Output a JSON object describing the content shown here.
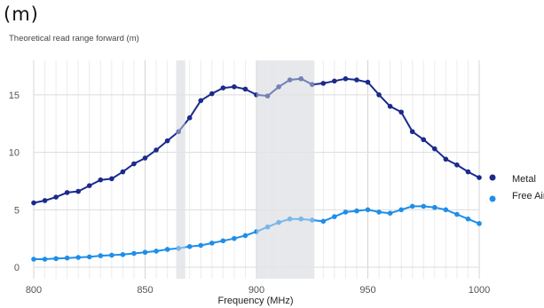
{
  "panel_label": "(m)",
  "chart_data": {
    "type": "line",
    "title": "Theoretical read range forward (m)",
    "xlabel": "Frequency (MHz)",
    "ylabel": "",
    "xlim": [
      800,
      1000
    ],
    "ylim": [
      -1,
      18
    ],
    "xticks": [
      800,
      850,
      900,
      950,
      1000
    ],
    "yticks": [
      0,
      5,
      10,
      15
    ],
    "grid": true,
    "legend_position": "right",
    "highlight_bands": [
      [
        864,
        868
      ],
      [
        900,
        926
      ]
    ],
    "x": [
      800,
      805,
      810,
      815,
      820,
      825,
      830,
      835,
      840,
      845,
      850,
      855,
      860,
      865,
      870,
      875,
      880,
      885,
      890,
      895,
      900,
      905,
      910,
      915,
      920,
      925,
      930,
      935,
      940,
      945,
      950,
      955,
      960,
      965,
      970,
      975,
      980,
      985,
      990,
      995,
      1000
    ],
    "series": [
      {
        "name": "Metal",
        "color": "#1a2a8c",
        "values": [
          5.6,
          5.8,
          6.1,
          6.5,
          6.6,
          7.1,
          7.6,
          7.7,
          8.3,
          9.0,
          9.5,
          10.2,
          11.0,
          11.8,
          13.0,
          14.5,
          15.1,
          15.6,
          15.7,
          15.5,
          15.0,
          14.9,
          15.7,
          16.3,
          16.4,
          15.9,
          16.0,
          16.2,
          16.4,
          16.3,
          16.1,
          15.0,
          14.0,
          13.5,
          11.8,
          11.1,
          10.3,
          9.4,
          8.9,
          8.3,
          7.8
        ]
      },
      {
        "name": "Free Air",
        "color": "#1e8ee8",
        "values": [
          0.7,
          0.7,
          0.75,
          0.8,
          0.85,
          0.9,
          1.0,
          1.05,
          1.1,
          1.2,
          1.3,
          1.4,
          1.55,
          1.65,
          1.8,
          1.9,
          2.1,
          2.3,
          2.5,
          2.75,
          3.1,
          3.5,
          3.9,
          4.2,
          4.2,
          4.1,
          4.0,
          4.4,
          4.8,
          4.9,
          5.0,
          4.8,
          4.7,
          5.0,
          5.3,
          5.3,
          5.2,
          5.0,
          4.6,
          4.2,
          3.8
        ]
      }
    ]
  }
}
